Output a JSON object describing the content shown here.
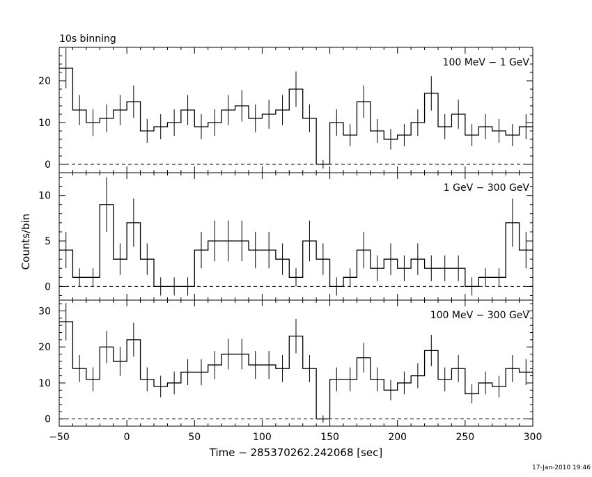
{
  "title": "10s binning",
  "footer_timestamp": "17-Jan-2010 19:46",
  "colors": {
    "line": "#000000",
    "background": "#ffffff"
  },
  "chart_data": [
    {
      "type": "step",
      "label": "100 MeV - 1 GeV",
      "x_bin_width": 10,
      "x": [
        -45,
        -35,
        -25,
        -15,
        -5,
        5,
        15,
        25,
        35,
        45,
        55,
        65,
        75,
        85,
        95,
        105,
        115,
        125,
        135,
        145,
        155,
        165,
        175,
        185,
        195,
        205,
        215,
        225,
        235,
        245,
        255,
        265,
        275,
        285,
        295
      ],
      "values": [
        23,
        13,
        10,
        11,
        13,
        15,
        8,
        9,
        10,
        13,
        9,
        10,
        13,
        14,
        11,
        12,
        13,
        18,
        11,
        0,
        10,
        7,
        15,
        8,
        6,
        7,
        10,
        17,
        9,
        12,
        7,
        9,
        8,
        7,
        9
      ],
      "ylim": [
        -2,
        28
      ],
      "yticks": [
        0,
        10,
        20
      ],
      "baseline": 0
    },
    {
      "type": "step",
      "label": "1 GeV - 300 GeV",
      "x_bin_width": 10,
      "x": [
        -45,
        -35,
        -25,
        -15,
        -5,
        5,
        15,
        25,
        35,
        45,
        55,
        65,
        75,
        85,
        95,
        105,
        115,
        125,
        135,
        145,
        155,
        165,
        175,
        185,
        195,
        205,
        215,
        225,
        235,
        245,
        255,
        265,
        275,
        285,
        295
      ],
      "values": [
        4,
        1,
        1,
        9,
        3,
        7,
        3,
        0,
        0,
        0,
        4,
        5,
        5,
        5,
        4,
        4,
        3,
        1,
        5,
        3,
        0,
        1,
        4,
        2,
        3,
        2,
        3,
        2,
        2,
        2,
        0,
        1,
        1,
        7,
        4
      ],
      "ylim": [
        -1.5,
        12.5
      ],
      "yticks": [
        0,
        5,
        10
      ],
      "baseline": 0
    },
    {
      "type": "step",
      "label": "100 MeV - 300 GeV",
      "x_bin_width": 10,
      "x": [
        -45,
        -35,
        -25,
        -15,
        -5,
        5,
        15,
        25,
        35,
        45,
        55,
        65,
        75,
        85,
        95,
        105,
        115,
        125,
        135,
        145,
        155,
        165,
        175,
        185,
        195,
        205,
        215,
        225,
        235,
        245,
        255,
        265,
        275,
        285,
        295
      ],
      "values": [
        27,
        14,
        11,
        20,
        16,
        22,
        11,
        9,
        10,
        13,
        13,
        15,
        18,
        18,
        15,
        15,
        14,
        23,
        14,
        0,
        11,
        11,
        17,
        11,
        8,
        10,
        12,
        19,
        11,
        14,
        7,
        10,
        9,
        14,
        13
      ],
      "ylim": [
        -2,
        33
      ],
      "yticks": [
        0,
        10,
        20,
        30
      ],
      "baseline": 0
    }
  ],
  "axes": {
    "xlabel": "Time − 285370262.242068 [sec]",
    "ylabel": "Counts/bin",
    "xlim": [
      -50,
      300
    ],
    "xticks": [
      -50,
      0,
      50,
      100,
      150,
      200,
      250,
      300
    ],
    "xtick_labels": [
      "−50",
      "0",
      "50",
      "100",
      "150",
      "200",
      "250",
      "300"
    ]
  }
}
